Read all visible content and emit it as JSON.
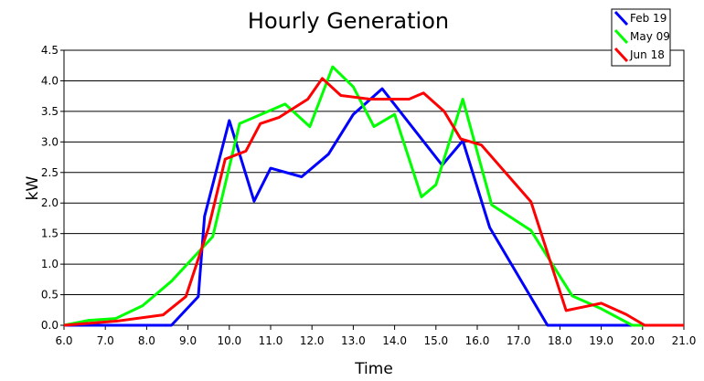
{
  "chart_data": {
    "type": "line",
    "title": "Hourly Generation",
    "xlabel": "Time",
    "ylabel": "kW",
    "xlim": [
      6.0,
      21.0
    ],
    "ylim": [
      0.0,
      4.5
    ],
    "x_ticks": [
      "6.0",
      "7.0",
      "8.0",
      "9.0",
      "10.0",
      "11.0",
      "12.0",
      "13.0",
      "14.0",
      "15.0",
      "16.0",
      "17.0",
      "18.0",
      "19.0",
      "20.0",
      "21.0"
    ],
    "y_ticks": [
      "0.0",
      "0.5",
      "1.0",
      "1.5",
      "2.0",
      "2.5",
      "3.0",
      "3.5",
      "4.0",
      "4.5"
    ],
    "grid": "horizontal",
    "legend_position": "top-right",
    "series": [
      {
        "name": "Feb 19",
        "color": "#0000ff",
        "points": [
          [
            6.0,
            0
          ],
          [
            8.6,
            0
          ],
          [
            9.25,
            0.47
          ],
          [
            9.4,
            1.78
          ],
          [
            10.0,
            3.35
          ],
          [
            10.6,
            2.03
          ],
          [
            11.0,
            2.57
          ],
          [
            11.75,
            2.43
          ],
          [
            12.4,
            2.8
          ],
          [
            13.0,
            3.45
          ],
          [
            13.7,
            3.87
          ],
          [
            15.15,
            2.62
          ],
          [
            15.65,
            3.02
          ],
          [
            16.3,
            1.6
          ],
          [
            17.7,
            0
          ],
          [
            21.0,
            0
          ]
        ]
      },
      {
        "name": "May 09",
        "color": "#00ff00",
        "points": [
          [
            6.0,
            0
          ],
          [
            6.6,
            0.08
          ],
          [
            7.25,
            0.11
          ],
          [
            7.9,
            0.32
          ],
          [
            8.6,
            0.72
          ],
          [
            9.6,
            1.45
          ],
          [
            10.25,
            3.3
          ],
          [
            11.35,
            3.62
          ],
          [
            11.95,
            3.25
          ],
          [
            12.5,
            4.23
          ],
          [
            13.0,
            3.9
          ],
          [
            13.5,
            3.25
          ],
          [
            14.0,
            3.45
          ],
          [
            14.65,
            2.1
          ],
          [
            15.0,
            2.3
          ],
          [
            15.65,
            3.7
          ],
          [
            16.35,
            1.97
          ],
          [
            17.3,
            1.55
          ],
          [
            18.3,
            0.48
          ],
          [
            19.0,
            0.27
          ],
          [
            19.75,
            0
          ],
          [
            21.0,
            0
          ]
        ]
      },
      {
        "name": "Jun 18",
        "color": "#ff0000",
        "points": [
          [
            6.0,
            0
          ],
          [
            7.3,
            0.07
          ],
          [
            8.4,
            0.17
          ],
          [
            8.95,
            0.47
          ],
          [
            9.5,
            1.6
          ],
          [
            9.9,
            2.72
          ],
          [
            10.4,
            2.85
          ],
          [
            10.75,
            3.3
          ],
          [
            11.2,
            3.4
          ],
          [
            11.9,
            3.7
          ],
          [
            12.25,
            4.04
          ],
          [
            12.7,
            3.76
          ],
          [
            13.4,
            3.7
          ],
          [
            14.0,
            3.7
          ],
          [
            14.35,
            3.7
          ],
          [
            14.7,
            3.8
          ],
          [
            15.2,
            3.5
          ],
          [
            15.6,
            3.05
          ],
          [
            16.1,
            2.95
          ],
          [
            17.3,
            2.02
          ],
          [
            18.15,
            0.24
          ],
          [
            19.0,
            0.36
          ],
          [
            19.6,
            0.18
          ],
          [
            20.05,
            0
          ],
          [
            21.0,
            0
          ]
        ]
      }
    ]
  }
}
